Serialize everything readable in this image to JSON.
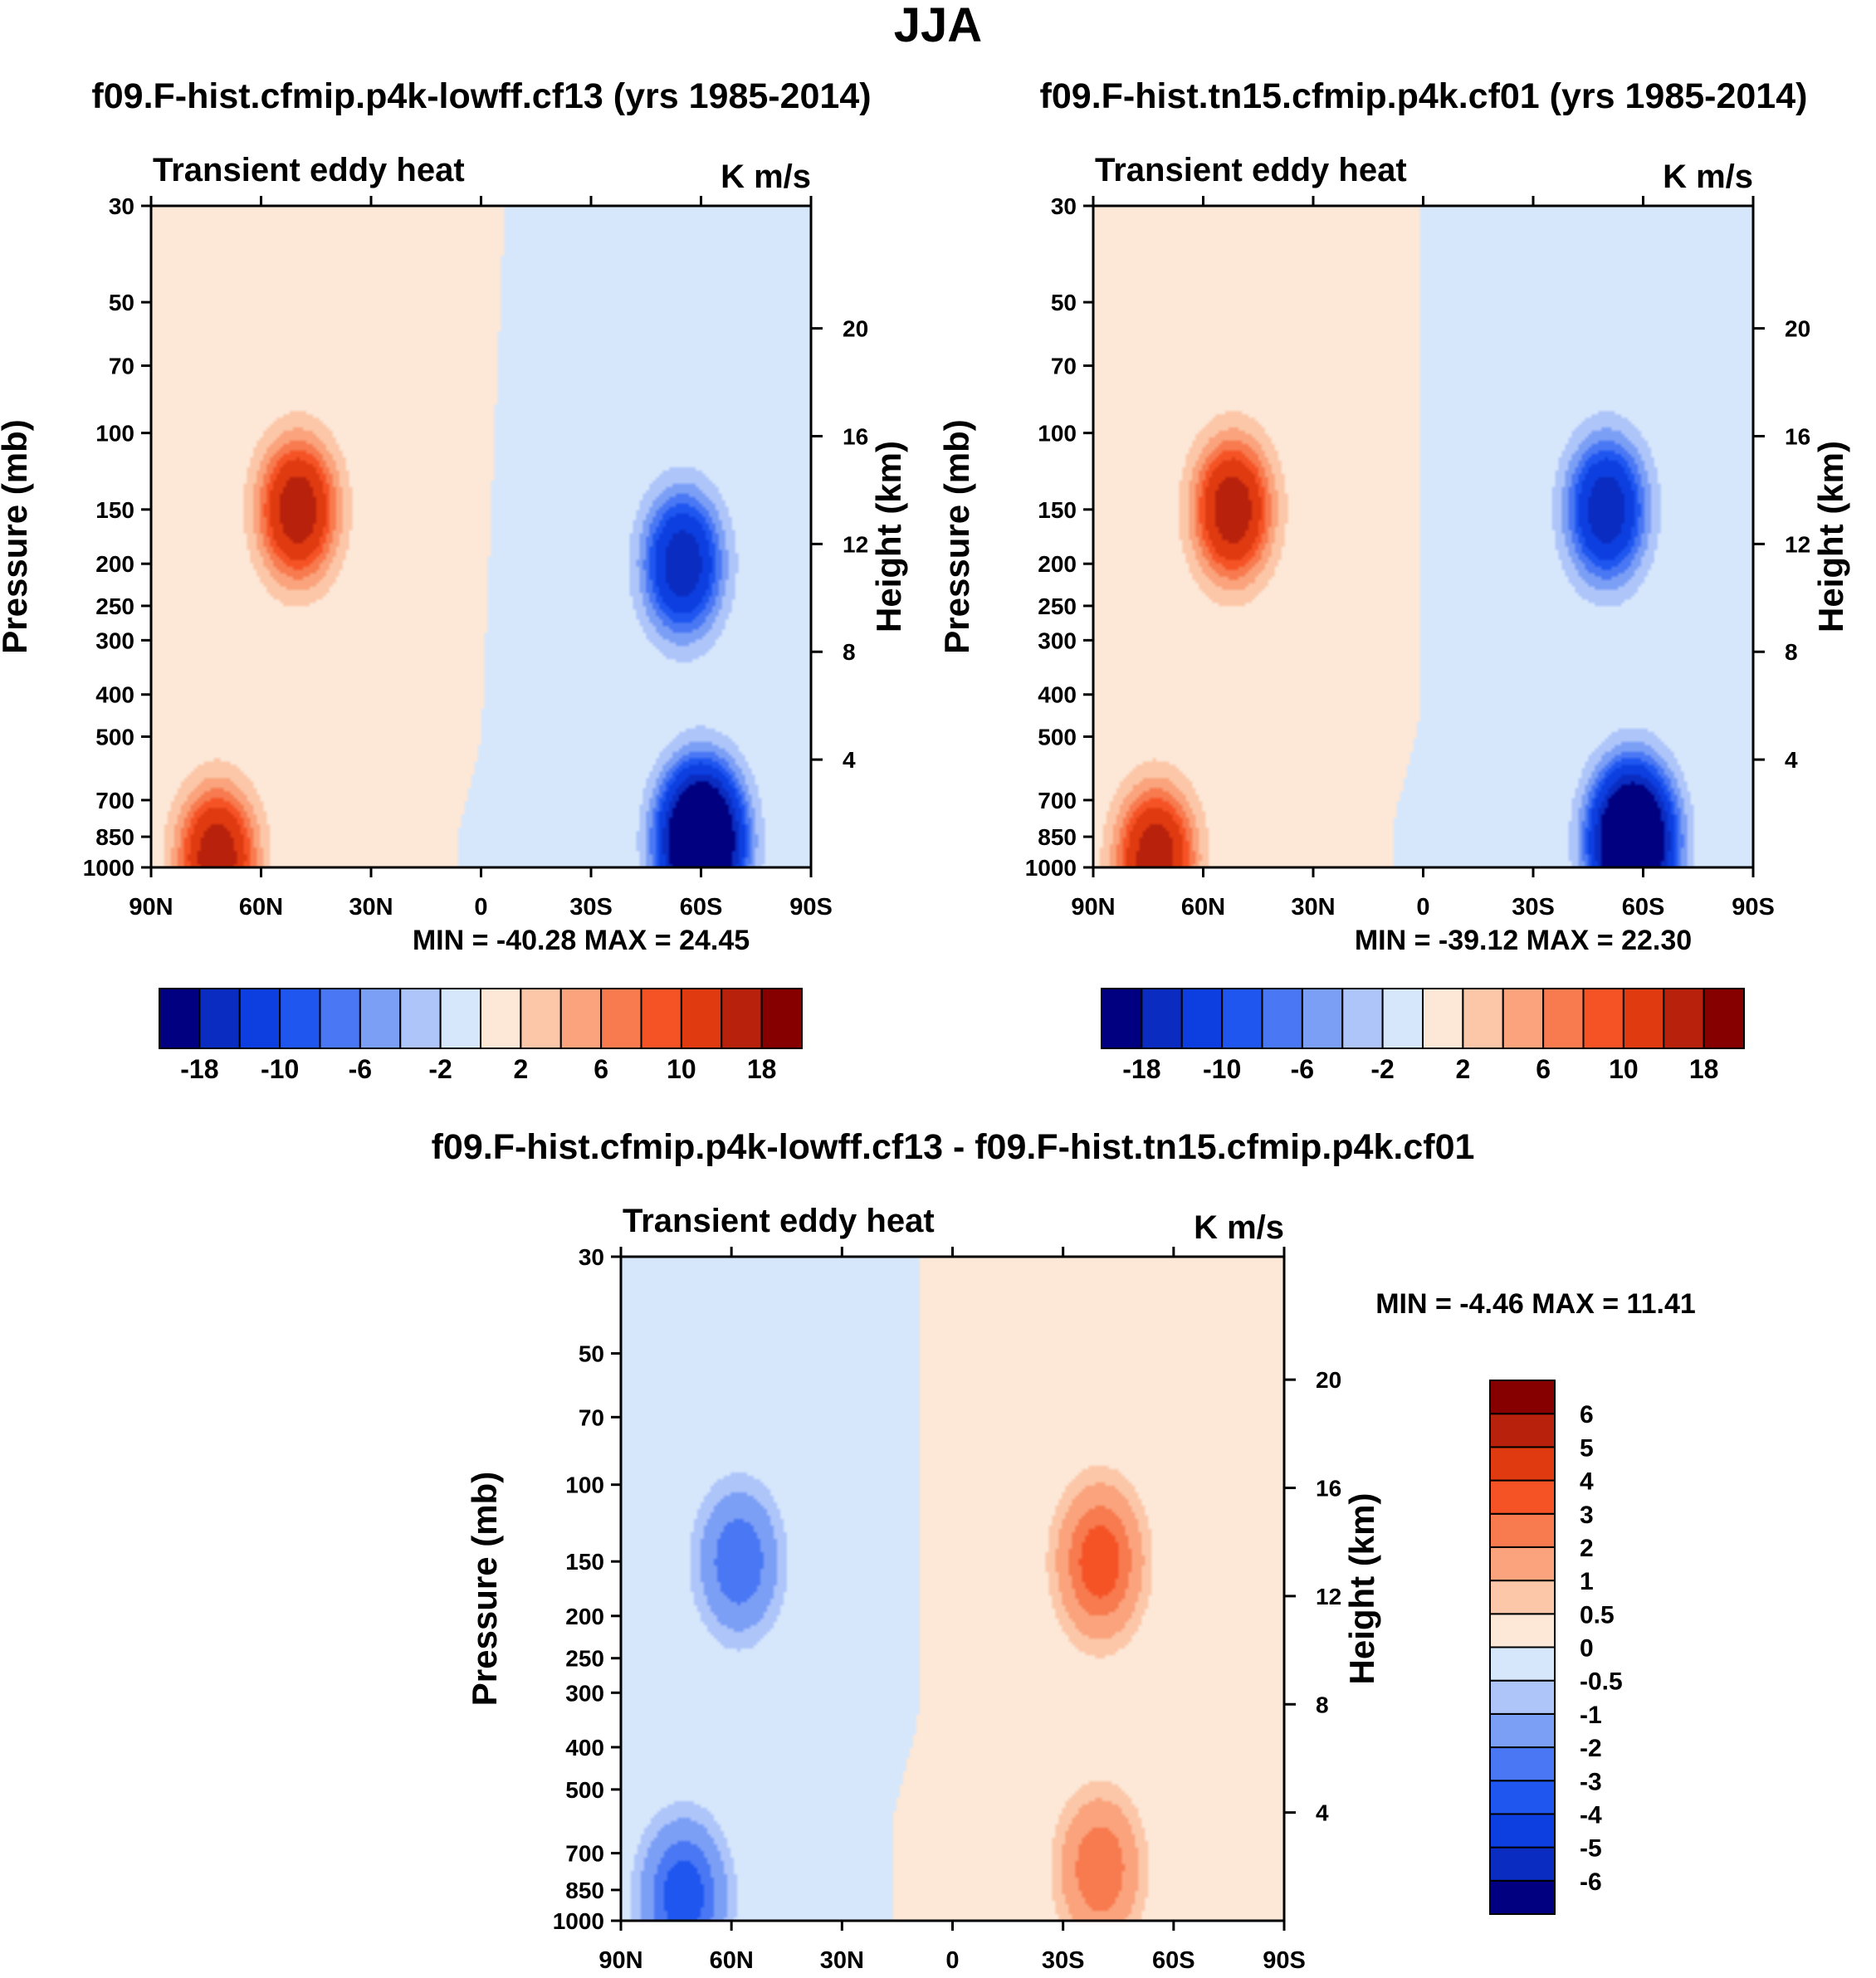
{
  "figure_title": "JJA",
  "chart_data": [
    {
      "type": "heatmap",
      "panel_id": "cf13",
      "title": "f09.F-hist.cfmip.p4k-lowff.cf13 (yrs 1985-2014)",
      "left_label": "Transient eddy heat",
      "right_label": "K m/s",
      "ylabel": "Pressure (mb)",
      "y2label": "Height (km)",
      "x_ticks": [
        "90N",
        "60N",
        "30N",
        "0",
        "30S",
        "60S",
        "90S"
      ],
      "y_ticks": [
        "30",
        "50",
        "70",
        "100",
        "150",
        "200",
        "250",
        "300",
        "400",
        "500",
        "700",
        "850",
        "1000"
      ],
      "y2_ticks": [
        "20",
        "16",
        "12",
        "8",
        "4"
      ],
      "xlim": [
        "90N",
        "90S"
      ],
      "ylim_mb": [
        1000,
        30
      ],
      "y_scale": "log",
      "stats": "MIN = -40.28  MAX =  24.45",
      "min": -40.28,
      "max": 24.45,
      "colorbar": {
        "orientation": "horizontal",
        "colors": [
          "#000080",
          "#0a2cc0",
          "#0d3fe0",
          "#1f56f0",
          "#4a78f4",
          "#7c9ff6",
          "#aec5fa",
          "#d6e7fc",
          "#fde7d7",
          "#fcc7a8",
          "#faa37c",
          "#f87a4f",
          "#f55326",
          "#df3a10",
          "#b8210c",
          "#860000"
        ],
        "tick_labels": [
          "-18",
          "-10",
          "-6",
          "-2",
          "2",
          "6",
          "10",
          "18"
        ]
      },
      "features": [
        {
          "lat": 50,
          "p": 150,
          "value": 18,
          "note": "NH upper-tropospheric maximum"
        },
        {
          "lat": 72,
          "p": 950,
          "value": 18,
          "note": "NH surface maximum"
        },
        {
          "lat": -55,
          "p": 200,
          "value": -18,
          "note": "SH upper jet minimum"
        },
        {
          "lat": -60,
          "p": 870,
          "value": -40.28,
          "note": "SH lower-tropospheric minimum"
        }
      ]
    },
    {
      "type": "heatmap",
      "panel_id": "cf01",
      "title": "f09.F-hist.tn15.cfmip.p4k.cf01 (yrs 1985-2014)",
      "left_label": "Transient eddy heat",
      "right_label": "K m/s",
      "ylabel": "Pressure (mb)",
      "y2label": "Height (km)",
      "x_ticks": [
        "90N",
        "60N",
        "30N",
        "0",
        "30S",
        "60S",
        "90S"
      ],
      "y_ticks": [
        "30",
        "50",
        "70",
        "100",
        "150",
        "200",
        "250",
        "300",
        "400",
        "500",
        "700",
        "850",
        "1000"
      ],
      "y2_ticks": [
        "20",
        "16",
        "12",
        "8",
        "4"
      ],
      "xlim": [
        "90N",
        "90S"
      ],
      "ylim_mb": [
        1000,
        30
      ],
      "y_scale": "log",
      "stats": "MIN = -39.12  MAX =  22.30",
      "min": -39.12,
      "max": 22.3,
      "colorbar": {
        "orientation": "horizontal",
        "colors": [
          "#000080",
          "#0a2cc0",
          "#0d3fe0",
          "#1f56f0",
          "#4a78f4",
          "#7c9ff6",
          "#aec5fa",
          "#d6e7fc",
          "#fde7d7",
          "#fcc7a8",
          "#faa37c",
          "#f87a4f",
          "#f55326",
          "#df3a10",
          "#b8210c",
          "#860000"
        ],
        "tick_labels": [
          "-18",
          "-10",
          "-6",
          "-2",
          "2",
          "6",
          "10",
          "18"
        ]
      },
      "features": [
        {
          "lat": 52,
          "p": 150,
          "value": 18,
          "note": "NH upper-tropospheric maximum"
        },
        {
          "lat": 73,
          "p": 950,
          "value": 18,
          "note": "NH surface maximum"
        },
        {
          "lat": -50,
          "p": 150,
          "value": -18,
          "note": "SH upper jet minimum"
        },
        {
          "lat": -57,
          "p": 870,
          "value": -39.12,
          "note": "SH lower-tropospheric minimum"
        }
      ]
    },
    {
      "type": "heatmap",
      "panel_id": "diff",
      "title": "f09.F-hist.cfmip.p4k-lowff.cf13 - f09.F-hist.tn15.cfmip.p4k.cf01",
      "left_label": "Transient eddy heat",
      "right_label": "K m/s",
      "ylabel": "Pressure (mb)",
      "y2label": "Height (km)",
      "x_ticks": [
        "90N",
        "60N",
        "30N",
        "0",
        "30S",
        "60S",
        "90S"
      ],
      "y_ticks": [
        "30",
        "50",
        "70",
        "100",
        "150",
        "200",
        "250",
        "300",
        "400",
        "500",
        "700",
        "850",
        "1000"
      ],
      "y2_ticks": [
        "20",
        "16",
        "12",
        "8",
        "4"
      ],
      "xlim": [
        "90N",
        "90S"
      ],
      "ylim_mb": [
        1000,
        30
      ],
      "y_scale": "log",
      "stats": "MIN =  -4.46  MAX =  11.41",
      "min": -4.46,
      "max": 11.41,
      "colorbar": {
        "orientation": "vertical",
        "colors": [
          "#000080",
          "#0a2cc0",
          "#0d3fe0",
          "#1f56f0",
          "#4a78f4",
          "#7c9ff6",
          "#aec5fa",
          "#d6e7fc",
          "#fde7d7",
          "#fcc7a8",
          "#faa37c",
          "#f87a4f",
          "#f55326",
          "#df3a10",
          "#b8210c",
          "#860000"
        ],
        "tick_labels": [
          "-6",
          "-5",
          "-4",
          "-3",
          "-2",
          "-1",
          "-0.5",
          "0",
          "0.5",
          "1",
          "2",
          "3",
          "4",
          "5",
          "6"
        ]
      },
      "features": [
        {
          "lat": -40,
          "p": 150,
          "value": 4,
          "note": "SH upper-tropospheric increase"
        },
        {
          "lat": -40,
          "p": 760,
          "value": 3,
          "note": "SH lower-tropospheric increase"
        },
        {
          "lat": 58,
          "p": 150,
          "value": -3,
          "note": "NH upper decrease"
        },
        {
          "lat": 73,
          "p": 880,
          "value": -4,
          "note": "NH surface decrease"
        }
      ]
    }
  ]
}
